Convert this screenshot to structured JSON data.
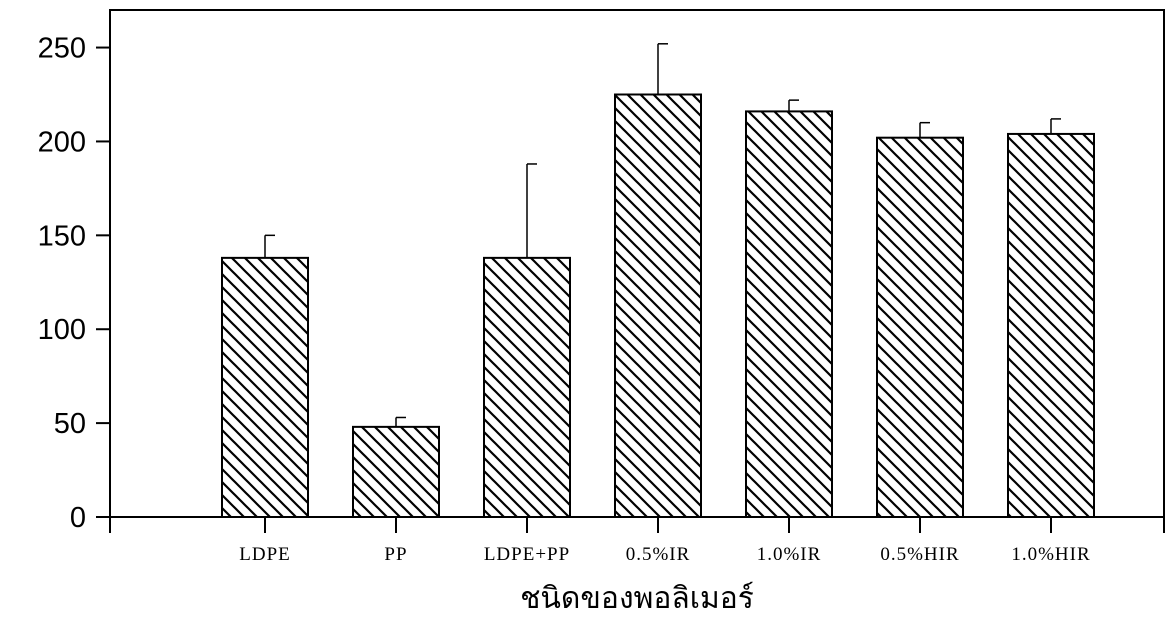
{
  "chart_data": {
    "type": "bar",
    "title": "",
    "xlabel": "ชนิดของพอลิเมอร์",
    "ylabel": "",
    "categories": [
      "LDPE",
      "PP",
      "LDPE+PP",
      "0.5%IR",
      "1.0%IR",
      "0.5%HIR",
      "1.0%HIR"
    ],
    "values": [
      138,
      48,
      138,
      225,
      216,
      202,
      204
    ],
    "error": [
      12,
      5,
      50,
      27,
      6,
      8,
      8
    ],
    "ylim": [
      0,
      270
    ],
    "yticks": [
      0,
      50,
      100,
      150,
      200,
      250
    ],
    "grid": false,
    "legend": "none",
    "bar_fill": "hatched",
    "colors": {
      "bar_stroke": "#000000",
      "hatch": "#000000",
      "background": "#ffffff"
    }
  }
}
